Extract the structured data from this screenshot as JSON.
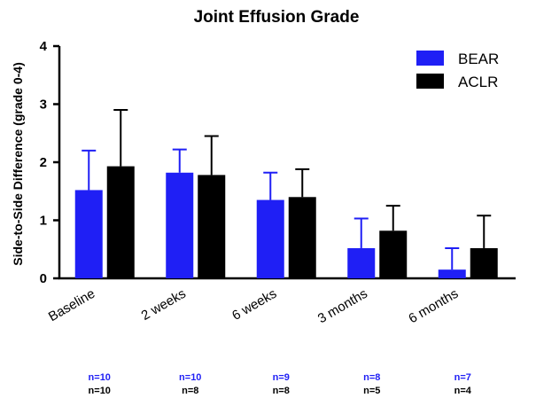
{
  "chart_data": {
    "type": "bar",
    "title": "Joint Effusion Grade",
    "xlabel": "",
    "ylabel": "Side-to-Side Difference (grade 0-4)",
    "ylim": [
      0,
      4
    ],
    "yticks": [
      "0",
      "1",
      "2",
      "3",
      "4"
    ],
    "categories": [
      "Baseline",
      "2 weeks",
      "6 weeks",
      "3 months",
      "6 months"
    ],
    "series": [
      {
        "name": "BEAR",
        "color": "#1f1ff5",
        "values": [
          1.52,
          1.82,
          1.35,
          0.52,
          0.15
        ],
        "error_upper": [
          2.2,
          2.22,
          1.82,
          1.03,
          0.52
        ],
        "n_labels": [
          "n=10",
          "n=10",
          "n=9",
          "n=8",
          "n=7"
        ]
      },
      {
        "name": "ACLR",
        "color": "#000000",
        "values": [
          1.93,
          1.78,
          1.4,
          0.82,
          0.52
        ],
        "error_upper": [
          2.9,
          2.45,
          1.88,
          1.25,
          1.08
        ],
        "n_labels": [
          "n=10",
          "n=8",
          "n=8",
          "n=5",
          "n=4"
        ]
      }
    ],
    "legend_position": "top-right",
    "grid": false
  }
}
